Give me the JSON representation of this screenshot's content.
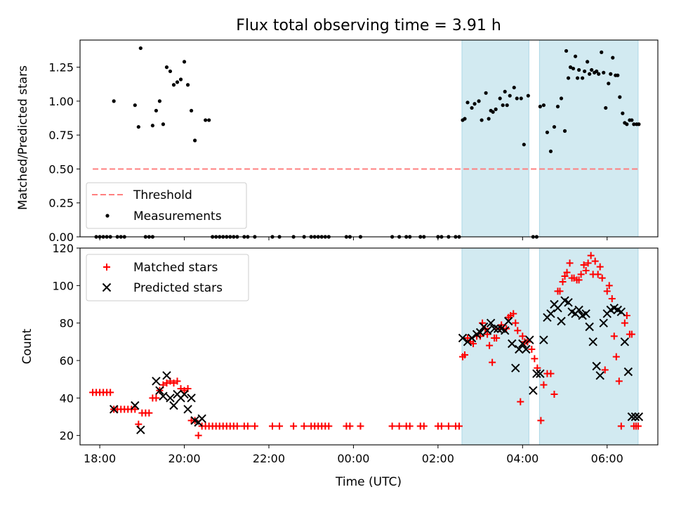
{
  "chart_data": [
    {
      "type": "scatter",
      "title": "Flux total observing time = 3.91 h",
      "ylabel": "Matched/Predicted stars",
      "xlabel": "",
      "ylim": [
        0,
        1.45
      ],
      "yticks": [
        "0.00",
        "0.25",
        "0.50",
        "0.75",
        "1.00",
        "1.25"
      ],
      "xlim": [
        "17:32",
        "07:12"
      ],
      "grid": false,
      "legend_placement": "lower-left",
      "shaded_intervals": [
        [
          "02:34",
          "04:09"
        ],
        [
          "04:24",
          "06:44"
        ]
      ],
      "shade_color": "#add8e6",
      "threshold": {
        "name": "Threshold",
        "y": 0.5,
        "x_range": [
          "17:50",
          "06:44"
        ],
        "color": "#ff7f7f"
      },
      "series": [
        {
          "name": "Measurements",
          "color": "#000000",
          "x": [
            "18:20",
            "18:50",
            "18:55",
            "18:58",
            "19:15",
            "19:20",
            "19:25",
            "19:30",
            "19:35",
            "19:40",
            "19:45",
            "19:50",
            "19:55",
            "20:00",
            "20:05",
            "20:10",
            "20:15",
            "20:30",
            "20:35",
            "02:35",
            "02:38",
            "02:42",
            "02:48",
            "02:52",
            "02:58",
            "03:02",
            "03:08",
            "03:12",
            "03:15",
            "03:18",
            "03:22",
            "03:28",
            "03:32",
            "03:35",
            "03:38",
            "03:42",
            "03:48",
            "03:52",
            "03:58",
            "04:02",
            "04:08",
            "04:25",
            "04:30",
            "04:35",
            "04:40",
            "04:45",
            "04:50",
            "04:55",
            "05:00",
            "05:02",
            "05:05",
            "05:08",
            "05:12",
            "05:15",
            "05:18",
            "05:20",
            "05:25",
            "05:28",
            "05:32",
            "05:35",
            "05:38",
            "05:42",
            "05:45",
            "05:48",
            "05:52",
            "05:55",
            "05:58",
            "06:02",
            "06:05",
            "06:08",
            "06:12",
            "06:15",
            "06:18",
            "06:22",
            "06:25",
            "06:28",
            "06:32",
            "06:35",
            "06:38",
            "06:42",
            "06:45"
          ],
          "y": [
            1.0,
            0.97,
            0.81,
            1.39,
            0.82,
            0.93,
            1.0,
            0.83,
            1.25,
            1.22,
            1.12,
            1.14,
            1.16,
            1.29,
            1.12,
            0.93,
            0.71,
            0.86,
            0.86,
            0.86,
            0.87,
            0.99,
            0.95,
            0.98,
            1.0,
            0.86,
            1.06,
            0.87,
            0.93,
            0.92,
            0.94,
            1.02,
            0.97,
            1.07,
            0.97,
            1.04,
            1.1,
            1.02,
            1.02,
            0.68,
            1.04,
            0.96,
            0.97,
            0.77,
            0.63,
            0.81,
            0.96,
            1.02,
            0.78,
            1.37,
            1.17,
            1.25,
            1.24,
            1.33,
            1.17,
            1.23,
            1.17,
            1.22,
            1.29,
            1.2,
            1.23,
            1.21,
            1.22,
            1.2,
            1.36,
            1.21,
            0.95,
            1.13,
            1.2,
            1.32,
            1.19,
            1.19,
            1.03,
            0.91,
            0.84,
            0.83,
            0.86,
            0.86,
            0.83,
            0.83,
            0.83
          ],
          "zeros_x": [
            "17:55",
            "18:00",
            "18:05",
            "18:10",
            "18:15",
            "18:25",
            "18:30",
            "18:35",
            "19:05",
            "19:10",
            "19:15",
            "20:40",
            "20:45",
            "20:50",
            "20:55",
            "21:00",
            "21:05",
            "21:10",
            "21:15",
            "21:25",
            "21:30",
            "21:40",
            "22:05",
            "22:15",
            "22:35",
            "22:50",
            "23:00",
            "23:05",
            "23:10",
            "23:15",
            "23:20",
            "23:25",
            "23:50",
            "23:55",
            "00:10",
            "00:55",
            "01:05",
            "01:15",
            "01:20",
            "01:35",
            "01:40",
            "02:00",
            "02:05",
            "02:15",
            "02:25",
            "02:30",
            "04:15",
            "04:20"
          ]
        }
      ]
    },
    {
      "type": "scatter",
      "title": "",
      "ylabel": "Count",
      "xlabel": "Time (UTC)",
      "ylim": [
        15,
        120
      ],
      "yticks": [
        "20",
        "40",
        "60",
        "80",
        "100",
        "120"
      ],
      "xticks": [
        "18:00",
        "20:00",
        "22:00",
        "00:00",
        "02:00",
        "04:00",
        "06:00"
      ],
      "xlim": [
        "17:32",
        "07:12"
      ],
      "grid": false,
      "legend_placement": "upper-left",
      "shaded_intervals": [
        [
          "02:34",
          "04:09"
        ],
        [
          "04:24",
          "06:44"
        ]
      ],
      "series": [
        {
          "name": "Matched stars",
          "marker": "+",
          "color": "#ff0000",
          "x": [
            "17:50",
            "17:55",
            "18:00",
            "18:05",
            "18:10",
            "18:15",
            "18:20",
            "18:25",
            "18:30",
            "18:35",
            "18:40",
            "18:45",
            "18:50",
            "18:55",
            "19:00",
            "19:05",
            "19:10",
            "19:15",
            "19:20",
            "19:25",
            "19:30",
            "19:35",
            "19:40",
            "19:45",
            "19:50",
            "19:55",
            "20:00",
            "20:05",
            "20:10",
            "20:15",
            "20:20",
            "20:25",
            "20:30",
            "20:35",
            "20:40",
            "20:45",
            "20:50",
            "20:55",
            "21:00",
            "21:05",
            "21:10",
            "21:15",
            "21:25",
            "21:30",
            "21:40",
            "22:05",
            "22:15",
            "22:35",
            "22:50",
            "23:00",
            "23:05",
            "23:10",
            "23:15",
            "23:20",
            "23:25",
            "23:50",
            "23:55",
            "00:10",
            "00:55",
            "01:05",
            "01:15",
            "01:20",
            "01:35",
            "01:40",
            "02:00",
            "02:05",
            "02:15",
            "02:25",
            "02:30",
            "02:35",
            "02:38",
            "02:42",
            "02:46",
            "02:50",
            "02:55",
            "03:00",
            "03:03",
            "03:07",
            "03:10",
            "03:13",
            "03:17",
            "03:20",
            "03:23",
            "03:27",
            "03:30",
            "03:33",
            "03:37",
            "03:40",
            "03:43",
            "03:47",
            "03:50",
            "03:53",
            "03:57",
            "04:00",
            "04:03",
            "04:07",
            "04:13",
            "04:17",
            "04:21",
            "04:26",
            "04:30",
            "04:35",
            "04:40",
            "04:45",
            "04:50",
            "04:53",
            "04:57",
            "05:00",
            "05:03",
            "05:07",
            "05:10",
            "05:13",
            "05:17",
            "05:20",
            "05:23",
            "05:27",
            "05:30",
            "05:33",
            "05:37",
            "05:40",
            "05:43",
            "05:47",
            "05:50",
            "05:53",
            "05:57",
            "06:00",
            "06:03",
            "06:07",
            "06:10",
            "06:13",
            "06:17",
            "06:20",
            "06:25",
            "06:28",
            "06:32",
            "06:35",
            "06:38",
            "06:41",
            "06:44"
          ],
          "y": [
            43,
            43,
            43,
            43,
            43,
            43,
            34,
            34,
            34,
            34,
            34,
            34,
            34,
            26,
            32,
            32,
            32,
            40,
            40,
            44,
            47,
            48,
            49,
            48,
            49,
            45,
            44,
            45,
            28,
            28,
            20,
            25,
            25,
            25,
            25,
            25,
            25,
            25,
            25,
            25,
            25,
            25,
            25,
            25,
            25,
            25,
            25,
            25,
            25,
            25,
            25,
            25,
            25,
            25,
            25,
            25,
            25,
            25,
            25,
            25,
            25,
            25,
            25,
            25,
            25,
            25,
            25,
            25,
            25,
            62,
            63,
            72,
            70,
            69,
            73,
            73,
            80,
            77,
            74,
            68,
            59,
            72,
            72,
            77,
            79,
            77,
            77,
            83,
            84,
            85,
            80,
            76,
            38,
            73,
            70,
            70,
            66,
            61,
            56,
            28,
            47,
            53,
            53,
            42,
            97,
            97,
            102,
            105,
            107,
            112,
            104,
            104,
            103,
            103,
            106,
            111,
            108,
            112,
            116,
            106,
            113,
            106,
            110,
            104,
            55,
            97,
            100,
            93,
            73,
            62,
            49,
            25,
            80,
            84,
            74,
            74,
            25,
            25,
            25
          ]
        },
        {
          "name": "Predicted stars",
          "marker": "x",
          "color": "#000000",
          "x": [
            "18:20",
            "18:50",
            "18:58",
            "19:20",
            "19:25",
            "19:30",
            "19:35",
            "19:40",
            "19:45",
            "19:50",
            "19:55",
            "20:00",
            "20:05",
            "20:10",
            "20:15",
            "20:20",
            "20:25",
            "02:35",
            "02:42",
            "02:48",
            "02:55",
            "03:00",
            "03:05",
            "03:10",
            "03:15",
            "03:20",
            "03:25",
            "03:30",
            "03:35",
            "03:40",
            "03:45",
            "03:50",
            "03:55",
            "04:00",
            "04:05",
            "04:10",
            "04:15",
            "04:20",
            "04:25",
            "04:30",
            "04:35",
            "04:40",
            "04:45",
            "04:50",
            "04:55",
            "05:00",
            "05:05",
            "05:10",
            "05:15",
            "05:20",
            "05:25",
            "05:30",
            "05:35",
            "05:40",
            "05:45",
            "05:50",
            "05:55",
            "06:00",
            "06:05",
            "06:10",
            "06:15",
            "06:20",
            "06:25",
            "06:30",
            "06:35",
            "06:40",
            "06:45"
          ],
          "y": [
            34,
            36,
            23,
            49,
            44,
            41,
            52,
            40,
            36,
            42,
            40,
            42,
            34,
            40,
            28,
            27,
            29,
            72,
            70,
            72,
            74,
            75,
            78,
            76,
            80,
            77,
            77,
            77,
            76,
            81,
            69,
            56,
            66,
            69,
            66,
            71,
            44,
            53,
            53,
            71,
            83,
            85,
            90,
            88,
            81,
            92,
            91,
            86,
            85,
            87,
            84,
            85,
            78,
            70,
            57,
            52,
            80,
            85,
            87,
            88,
            87,
            86,
            70,
            54,
            30,
            30,
            30
          ]
        }
      ]
    }
  ]
}
